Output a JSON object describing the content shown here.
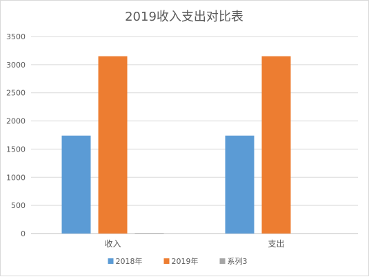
{
  "chart_data": {
    "type": "bar",
    "title": "2019收入支出对比表",
    "categories": [
      "收入",
      "支出"
    ],
    "series": [
      {
        "name": "2018年",
        "values": [
          1740,
          1740
        ],
        "color": "#5b9bd5"
      },
      {
        "name": "2019年",
        "values": [
          3150,
          3150
        ],
        "color": "#ed7d31"
      },
      {
        "name": "系列3",
        "values": [
          10,
          0
        ],
        "color": "#a5a5a5"
      }
    ],
    "yticks": [
      0,
      500,
      1000,
      1500,
      2000,
      2500,
      3000,
      3500
    ],
    "ylim": [
      0,
      3500
    ],
    "grid": true,
    "legend_position": "bottom"
  }
}
